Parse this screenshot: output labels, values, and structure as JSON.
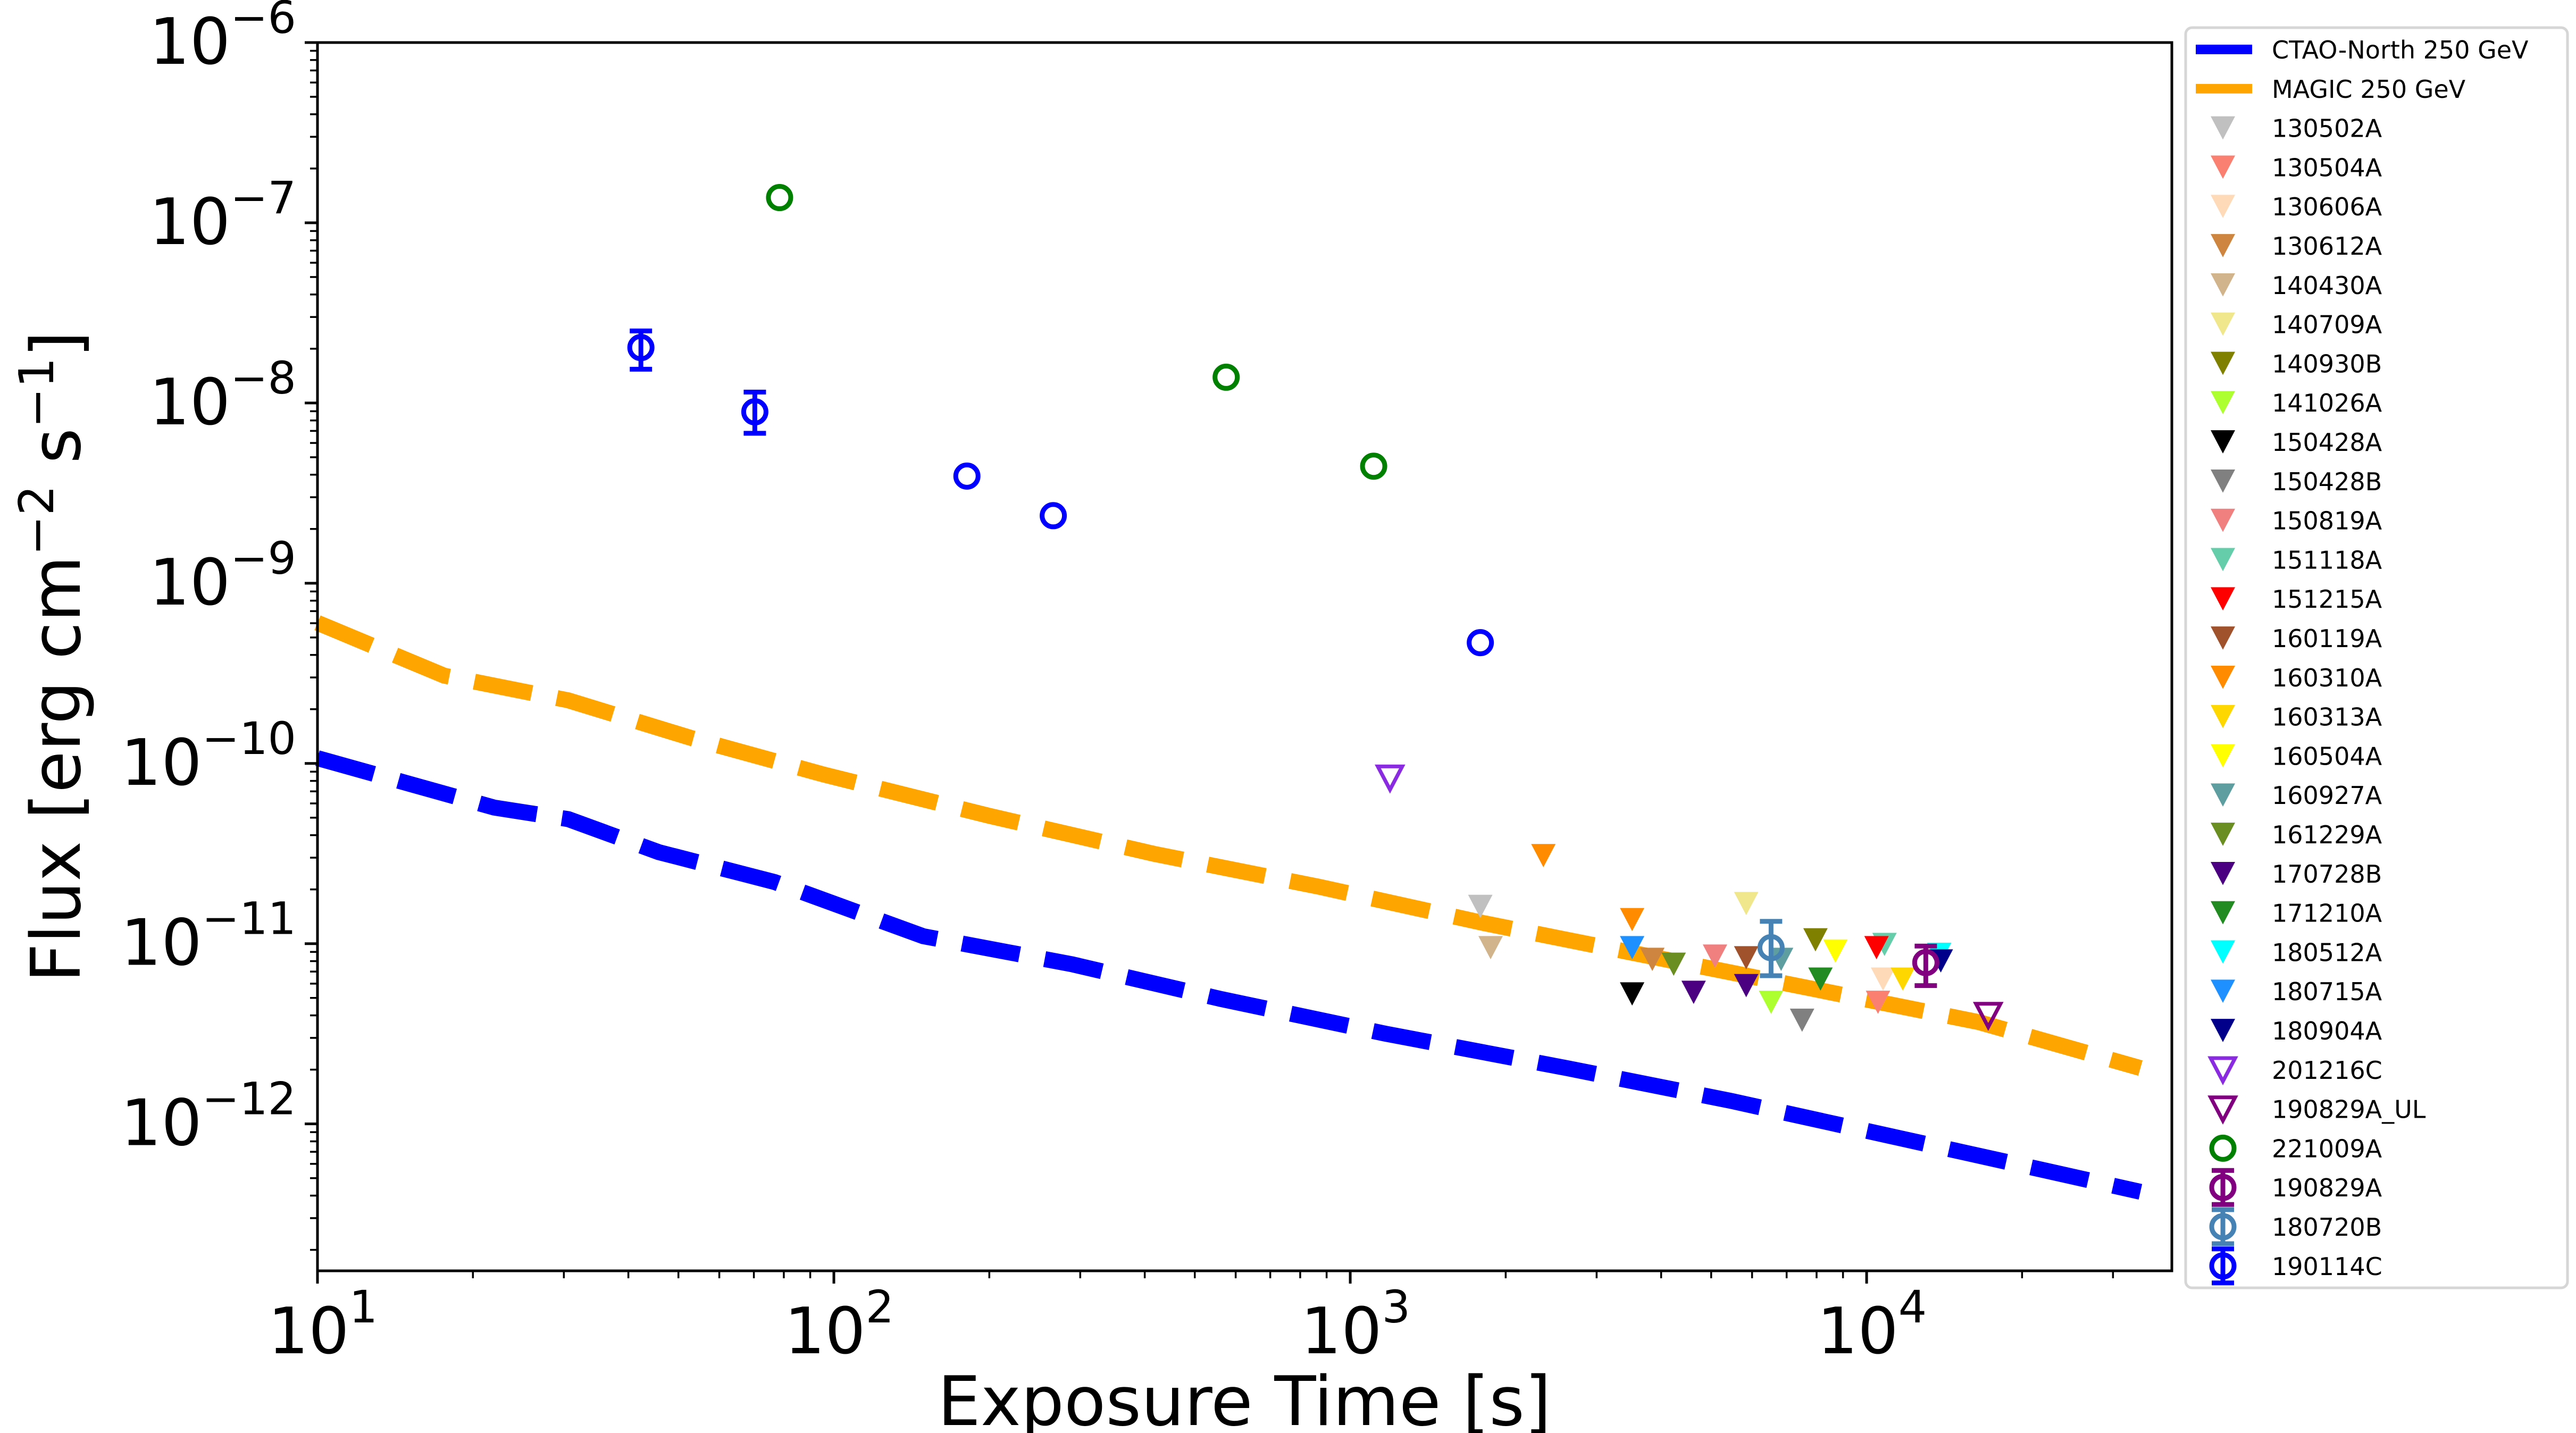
{
  "chart_data": {
    "type": "scatter",
    "title": "",
    "xlabel": "Exposure Time [s]",
    "ylabel_parts": {
      "prefix": "Flux [erg cm",
      "exp1": "−2",
      "mid": " s",
      "exp2": "−1",
      "suffix": "]"
    },
    "xscale": "log",
    "yscale": "log",
    "xlim": [
      10,
      39000
    ],
    "ylim": [
      1.53e-13,
      1e-06
    ],
    "grid": false,
    "legend_position": "outside-right",
    "x_ticks": [
      {
        "value": 10,
        "base": "10",
        "exp": "1"
      },
      {
        "value": 100,
        "base": "10",
        "exp": "2"
      },
      {
        "value": 1000,
        "base": "10",
        "exp": "3"
      },
      {
        "value": 10000,
        "base": "10",
        "exp": "4"
      }
    ],
    "y_ticks": [
      {
        "value": 1e-06,
        "base": "10",
        "exp": "−6"
      },
      {
        "value": 1e-07,
        "base": "10",
        "exp": "−7"
      },
      {
        "value": 1e-08,
        "base": "10",
        "exp": "−8"
      },
      {
        "value": 1e-09,
        "base": "10",
        "exp": "−9"
      },
      {
        "value": 1e-10,
        "base": "10",
        "exp": "−10"
      },
      {
        "value": 1e-11,
        "base": "10",
        "exp": "−11"
      },
      {
        "value": 1e-12,
        "base": "10",
        "exp": "−12"
      }
    ],
    "lines": [
      {
        "name": "CTAO-North 250 GeV",
        "color": "#0000ff",
        "style": "dashed",
        "x": [
          10,
          22.0,
          30.6,
          45.8,
          76.7,
          149,
          289,
          560,
          1167,
          2624,
          5473,
          11420,
          22140,
          33900
        ],
        "y": [
          1.07e-10,
          5.69e-11,
          4.91e-11,
          3.22e-11,
          2.2e-11,
          1.1e-11,
          7.69e-12,
          4.94e-12,
          3.17e-12,
          2.04e-12,
          1.34e-12,
          8.41e-13,
          5.52e-13,
          4.2e-13
        ]
      },
      {
        "name": "MAGIC 250 GeV",
        "color": "#ffa500",
        "style": "dashed",
        "x": [
          10,
          17.6,
          30.6,
          53.1,
          95.7,
          200,
          417,
          869,
          1815,
          3784,
          7900,
          16500,
          33900
        ],
        "y": [
          6.03e-10,
          3.07e-10,
          2.24e-10,
          1.38e-10,
          8.67e-11,
          5.12e-11,
          3.15e-11,
          2.07e-11,
          1.3e-11,
          8.53e-12,
          5.6e-12,
          3.67e-12,
          2.04e-12
        ]
      }
    ],
    "series": [
      {
        "name": "130502A",
        "marker": "triangle-down",
        "filled": true,
        "color": "#c0c0c0",
        "points": [
          {
            "x": 1786,
            "y": 1.61e-11
          }
        ]
      },
      {
        "name": "130504A",
        "marker": "triangle-down",
        "filled": true,
        "color": "#fa8072",
        "points": [
          {
            "x": 10520,
            "y": 4.73e-12
          }
        ]
      },
      {
        "name": "130606A",
        "marker": "triangle-down",
        "filled": true,
        "color": "#ffdab9",
        "points": [
          {
            "x": 10760,
            "y": 6.36e-12
          }
        ]
      },
      {
        "name": "130612A",
        "marker": "triangle-down",
        "filled": true,
        "color": "#cd853f",
        "points": [
          {
            "x": 3846,
            "y": 8.18e-12
          }
        ]
      },
      {
        "name": "140430A",
        "marker": "triangle-down",
        "filled": true,
        "color": "#d2b48c",
        "points": [
          {
            "x": 1870,
            "y": 9.5e-12
          }
        ]
      },
      {
        "name": "140709A",
        "marker": "triangle-down",
        "filled": true,
        "color": "#f0e68c",
        "points": [
          {
            "x": 5845,
            "y": 1.67e-11
          }
        ]
      },
      {
        "name": "140930B",
        "marker": "triangle-down",
        "filled": true,
        "color": "#808000",
        "points": [
          {
            "x": 7960,
            "y": 1.05e-11
          }
        ]
      },
      {
        "name": "141026A",
        "marker": "triangle-down",
        "filled": true,
        "color": "#adff2f",
        "points": [
          {
            "x": 6530,
            "y": 4.73e-12
          }
        ]
      },
      {
        "name": "150428A",
        "marker": "triangle-down",
        "filled": true,
        "color": "#000000",
        "points": [
          {
            "x": 3515,
            "y": 5.26e-12
          }
        ]
      },
      {
        "name": "150428B",
        "marker": "triangle-down",
        "filled": true,
        "color": "#808080",
        "points": [
          {
            "x": 7500,
            "y": 3.76e-12
          }
        ]
      },
      {
        "name": "150819A",
        "marker": "triangle-down",
        "filled": true,
        "color": "#f08080",
        "points": [
          {
            "x": 5086,
            "y": 8.53e-12
          }
        ]
      },
      {
        "name": "151118A",
        "marker": "triangle-down",
        "filled": true,
        "color": "#66cdaa",
        "points": [
          {
            "x": 10830,
            "y": 9.9e-12
          }
        ]
      },
      {
        "name": "151215A",
        "marker": "triangle-down",
        "filled": true,
        "color": "#ff0000",
        "points": [
          {
            "x": 10450,
            "y": 9.5e-12
          }
        ]
      },
      {
        "name": "160119A",
        "marker": "triangle-down",
        "filled": true,
        "color": "#a0522d",
        "points": [
          {
            "x": 5845,
            "y": 8.35e-12
          }
        ]
      },
      {
        "name": "160310A",
        "marker": "triangle-down",
        "filled": true,
        "color": "#ff8c00",
        "points": [
          {
            "x": 2366,
            "y": 3.08e-11
          },
          {
            "x": 3515,
            "y": 1.36e-11
          }
        ]
      },
      {
        "name": "160313A",
        "marker": "triangle-down",
        "filled": true,
        "color": "#ffd700",
        "points": [
          {
            "x": 11750,
            "y": 6.36e-12
          }
        ]
      },
      {
        "name": "160504A",
        "marker": "triangle-down",
        "filled": true,
        "color": "#ffff00",
        "points": [
          {
            "x": 8700,
            "y": 9.1e-12
          }
        ]
      },
      {
        "name": "160927A",
        "marker": "triangle-down",
        "filled": true,
        "color": "#5f9ea0",
        "points": [
          {
            "x": 6830,
            "y": 8.18e-12
          }
        ]
      },
      {
        "name": "161229A",
        "marker": "triangle-down",
        "filled": true,
        "color": "#6b8e23",
        "points": [
          {
            "x": 4230,
            "y": 7.69e-12
          }
        ]
      },
      {
        "name": "170728B",
        "marker": "triangle-down",
        "filled": true,
        "color": "#4b0082",
        "points": [
          {
            "x": 4624,
            "y": 5.37e-12
          },
          {
            "x": 5845,
            "y": 5.85e-12
          }
        ]
      },
      {
        "name": "171210A",
        "marker": "triangle-down",
        "filled": true,
        "color": "#228b22",
        "points": [
          {
            "x": 8140,
            "y": 6.36e-12
          }
        ]
      },
      {
        "name": "180512A",
        "marker": "triangle-down",
        "filled": true,
        "color": "#00ffff",
        "points": [
          {
            "x": 13820,
            "y": 8.73e-12
          }
        ]
      },
      {
        "name": "180715A",
        "marker": "triangle-down",
        "filled": true,
        "color": "#1e90ff",
        "points": [
          {
            "x": 3515,
            "y": 9.5e-12
          }
        ]
      },
      {
        "name": "180904A",
        "marker": "triangle-down",
        "filled": true,
        "color": "#00008b",
        "points": [
          {
            "x": 13920,
            "y": 8.02e-12
          }
        ]
      },
      {
        "name": "201216C",
        "marker": "triangle-down",
        "filled": false,
        "color": "#8a2be2",
        "points": [
          {
            "x": 1194,
            "y": 8.3e-11
          }
        ]
      },
      {
        "name": "190829A_UL",
        "marker": "triangle-down",
        "filled": false,
        "color": "#800080",
        "points": [
          {
            "x": 17200,
            "y": 4e-12
          }
        ]
      },
      {
        "name": "221009A",
        "marker": "circle",
        "filled": false,
        "color": "#008000",
        "points": [
          {
            "x": 78.5,
            "y": 1.38e-07
          },
          {
            "x": 575,
            "y": 1.39e-08
          },
          {
            "x": 1110,
            "y": 4.46e-09
          }
        ]
      },
      {
        "name": "190829A",
        "marker": "circle-errorbar",
        "filled": false,
        "color": "#800080",
        "points": [
          {
            "x": 13020,
            "y": 7.85e-12,
            "ylo": 5.85e-12,
            "yhi": 9.7e-12
          }
        ]
      },
      {
        "name": "180720B",
        "marker": "circle-errorbar",
        "filled": false,
        "color": "#4682b4",
        "points": [
          {
            "x": 6530,
            "y": 9.5e-12,
            "ylo": 6.64e-12,
            "yhi": 1.33e-11
          }
        ]
      },
      {
        "name": "190114C",
        "marker": "circle-errorbar",
        "filled": false,
        "color": "#0000ff",
        "points": [
          {
            "x": 42.3,
            "y": 2.03e-08,
            "ylo": 1.54e-08,
            "yhi": 2.51e-08
          },
          {
            "x": 70.3,
            "y": 8.93e-09,
            "ylo": 6.79e-09,
            "yhi": 1.15e-08
          },
          {
            "x": 181,
            "y": 3.93e-09
          },
          {
            "x": 266,
            "y": 2.37e-09
          },
          {
            "x": 1786,
            "y": 4.68e-10
          }
        ]
      }
    ],
    "legend": [
      {
        "label": "CTAO-North 250 GeV",
        "kind": "line",
        "color": "#0000ff"
      },
      {
        "label": "MAGIC 250 GeV",
        "kind": "line",
        "color": "#ffa500"
      },
      {
        "label": "130502A",
        "kind": "tri",
        "color": "#c0c0c0"
      },
      {
        "label": "130504A",
        "kind": "tri",
        "color": "#fa8072"
      },
      {
        "label": "130606A",
        "kind": "tri",
        "color": "#ffdab9"
      },
      {
        "label": "130612A",
        "kind": "tri",
        "color": "#cd853f"
      },
      {
        "label": "140430A",
        "kind": "tri",
        "color": "#d2b48c"
      },
      {
        "label": "140709A",
        "kind": "tri",
        "color": "#f0e68c"
      },
      {
        "label": "140930B",
        "kind": "tri",
        "color": "#808000"
      },
      {
        "label": "141026A",
        "kind": "tri",
        "color": "#adff2f"
      },
      {
        "label": "150428A",
        "kind": "tri",
        "color": "#000000"
      },
      {
        "label": "150428B",
        "kind": "tri",
        "color": "#808080"
      },
      {
        "label": "150819A",
        "kind": "tri",
        "color": "#f08080"
      },
      {
        "label": "151118A",
        "kind": "tri",
        "color": "#66cdaa"
      },
      {
        "label": "151215A",
        "kind": "tri",
        "color": "#ff0000"
      },
      {
        "label": "160119A",
        "kind": "tri",
        "color": "#a0522d"
      },
      {
        "label": "160310A",
        "kind": "tri",
        "color": "#ff8c00"
      },
      {
        "label": "160313A",
        "kind": "tri",
        "color": "#ffd700"
      },
      {
        "label": "160504A",
        "kind": "tri",
        "color": "#ffff00"
      },
      {
        "label": "160927A",
        "kind": "tri",
        "color": "#5f9ea0"
      },
      {
        "label": "161229A",
        "kind": "tri",
        "color": "#6b8e23"
      },
      {
        "label": "170728B",
        "kind": "tri",
        "color": "#4b0082"
      },
      {
        "label": "171210A",
        "kind": "tri",
        "color": "#228b22"
      },
      {
        "label": "180512A",
        "kind": "tri",
        "color": "#00ffff"
      },
      {
        "label": "180715A",
        "kind": "tri",
        "color": "#1e90ff"
      },
      {
        "label": "180904A",
        "kind": "tri",
        "color": "#00008b"
      },
      {
        "label": "201216C",
        "kind": "tri-open",
        "color": "#8a2be2"
      },
      {
        "label": "190829A_UL",
        "kind": "tri-open",
        "color": "#800080"
      },
      {
        "label": "221009A",
        "kind": "circle",
        "color": "#008000"
      },
      {
        "label": "190829A",
        "kind": "circle-err",
        "color": "#800080"
      },
      {
        "label": "180720B",
        "kind": "circle-err",
        "color": "#4682b4"
      },
      {
        "label": "190114C",
        "kind": "circle-err",
        "color": "#0000ff"
      }
    ]
  }
}
